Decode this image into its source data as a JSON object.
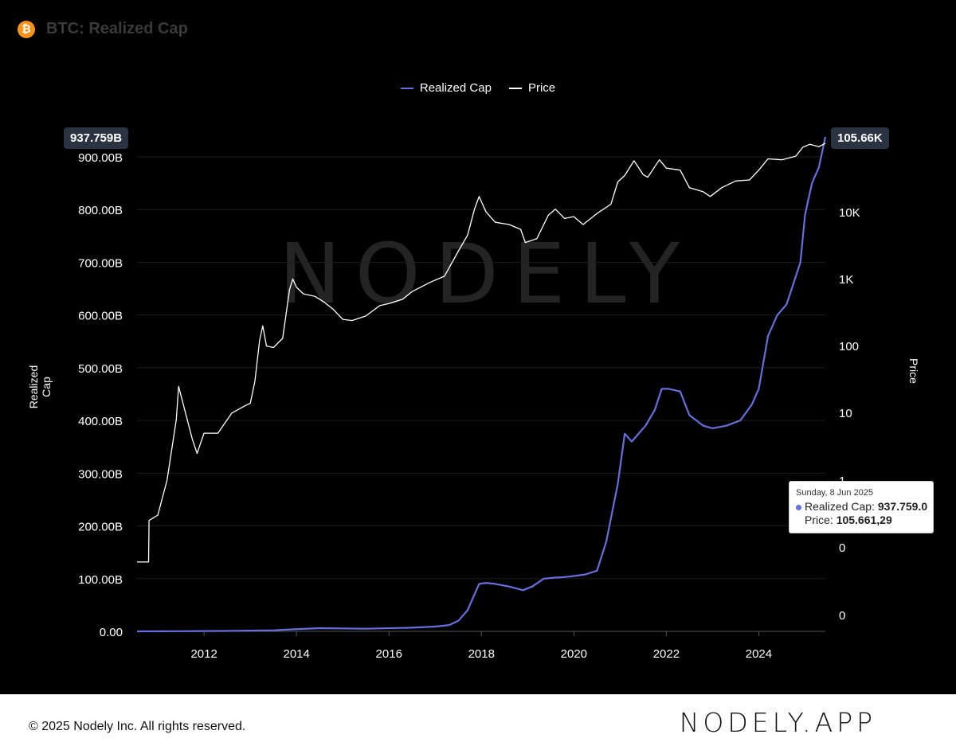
{
  "header": {
    "icon": "bitcoin-icon",
    "icon_glyph": "₿",
    "title": "BTC: Realized Cap"
  },
  "legend": [
    {
      "label": "Realized Cap",
      "color": "#6470e0"
    },
    {
      "label": "Price",
      "color": "#ffffff"
    }
  ],
  "watermark": "NODELY",
  "badges": {
    "left": "937.759B",
    "right": "105.66K"
  },
  "tooltip": {
    "date": "Sunday, 8 Jun 2025",
    "realized_label": "Realized Cap:",
    "realized_value": "937.759.0",
    "price_label": "Price:",
    "price_value": "105.661,29"
  },
  "footer": {
    "copyright": "© 2025 Nodely Inc. All rights reserved.",
    "brand": "NODELY.APP"
  },
  "chart_data": {
    "type": "line",
    "ylabel_left": "Realized Cap",
    "ylabel_right": "Price",
    "x_ticks": [
      "2012",
      "2014",
      "2016",
      "2018",
      "2020",
      "2022",
      "2024"
    ],
    "xlim": [
      2010.55,
      2025.44
    ],
    "y_left_ticks": [
      "0.00",
      "100.00B",
      "200.00B",
      "300.00B",
      "400.00B",
      "500.00B",
      "600.00B",
      "700.00B",
      "800.00B",
      "900.00B"
    ],
    "ylim_left": [
      0,
      937.759
    ],
    "y_right_ticks": [
      "0",
      "0",
      "1",
      "10",
      "100",
      "1K",
      "10K"
    ],
    "log_scale_right": true,
    "grid": true,
    "legend_position": "top-center",
    "series": [
      {
        "name": "Realized Cap",
        "axis": "left",
        "color": "#6470e0",
        "x": [
          2010.55,
          2011.5,
          2012.5,
          2013.5,
          2013.95,
          2014.5,
          2015.5,
          2016.5,
          2017.0,
          2017.3,
          2017.5,
          2017.7,
          2017.85,
          2017.95,
          2018.1,
          2018.3,
          2018.6,
          2018.9,
          2019.1,
          2019.35,
          2019.6,
          2019.8,
          2020.0,
          2020.25,
          2020.5,
          2020.7,
          2020.95,
          2021.1,
          2021.25,
          2021.35,
          2021.55,
          2021.75,
          2021.9,
          2022.05,
          2022.3,
          2022.5,
          2022.8,
          2023.0,
          2023.3,
          2023.6,
          2023.85,
          2024.0,
          2024.2,
          2024.4,
          2024.6,
          2024.9,
          2025.0,
          2025.15,
          2025.3,
          2025.44
        ],
        "values": [
          0,
          0.3,
          0.8,
          2,
          4,
          6,
          5,
          7,
          9,
          12,
          20,
          40,
          70,
          90,
          92,
          90,
          85,
          78,
          85,
          100,
          102,
          103,
          105,
          108,
          115,
          170,
          280,
          375,
          360,
          370,
          390,
          420,
          460,
          460,
          455,
          410,
          390,
          385,
          390,
          400,
          430,
          460,
          560,
          600,
          620,
          700,
          790,
          850,
          880,
          937.759
        ]
      },
      {
        "name": "Price",
        "axis": "right",
        "color": "#ffffff",
        "x": [
          2010.55,
          2010.8,
          2010.81,
          2011.0,
          2011.2,
          2011.4,
          2011.45,
          2011.6,
          2011.75,
          2011.85,
          2012.0,
          2012.3,
          2012.6,
          2012.9,
          2013.0,
          2013.1,
          2013.2,
          2013.27,
          2013.35,
          2013.5,
          2013.7,
          2013.85,
          2013.92,
          2014.0,
          2014.15,
          2014.4,
          2014.6,
          2014.8,
          2015.0,
          2015.2,
          2015.5,
          2015.8,
          2016.0,
          2016.3,
          2016.5,
          2016.9,
          2017.2,
          2017.5,
          2017.7,
          2017.85,
          2017.95,
          2018.1,
          2018.3,
          2018.6,
          2018.85,
          2018.95,
          2019.2,
          2019.45,
          2019.6,
          2019.8,
          2020.0,
          2020.2,
          2020.5,
          2020.8,
          2020.95,
          2021.1,
          2021.3,
          2021.5,
          2021.6,
          2021.85,
          2022.0,
          2022.3,
          2022.5,
          2022.8,
          2022.95,
          2023.2,
          2023.5,
          2023.8,
          2024.0,
          2024.2,
          2024.5,
          2024.8,
          2024.95,
          2025.1,
          2025.3,
          2025.44
        ],
        "values": [
          0.06,
          0.06,
          0.25,
          0.3,
          1.0,
          8,
          25,
          10,
          4,
          2.5,
          5,
          5,
          10,
          13,
          14,
          30,
          120,
          200,
          100,
          95,
          130,
          700,
          1000,
          750,
          600,
          550,
          450,
          350,
          250,
          240,
          280,
          400,
          430,
          500,
          650,
          900,
          1100,
          2600,
          4500,
          11000,
          17000,
          10000,
          7000,
          6500,
          5500,
          3500,
          4000,
          9000,
          11000,
          8000,
          8500,
          6500,
          9500,
          13000,
          28000,
          35000,
          58000,
          36000,
          33000,
          60000,
          45000,
          42000,
          23000,
          20000,
          17000,
          23000,
          29000,
          30000,
          42000,
          62000,
          60000,
          68000,
          92000,
          102000,
          94000,
          105661.29
        ]
      }
    ]
  }
}
